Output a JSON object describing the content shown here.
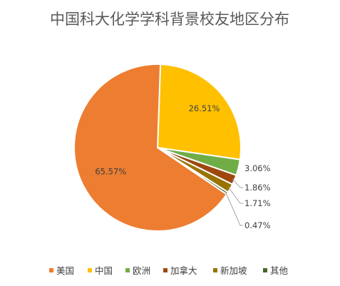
{
  "chart_data": {
    "type": "pie",
    "title": "中国科大化学学科背景校友地区分布",
    "categories": [
      "美国",
      "中国",
      "欧洲",
      "加拿大",
      "新加坡",
      "其他"
    ],
    "values": [
      65.57,
      26.51,
      3.06,
      1.86,
      1.71,
      0.47
    ],
    "data_labels": [
      "65.57%",
      "26.51%",
      "3.06%",
      "1.86%",
      "1.71%",
      "0.47%"
    ],
    "colors": [
      "#ED7D31",
      "#FFC000",
      "#70AD47",
      "#9E480E",
      "#997300",
      "#43682B"
    ],
    "legend_position": "bottom"
  }
}
